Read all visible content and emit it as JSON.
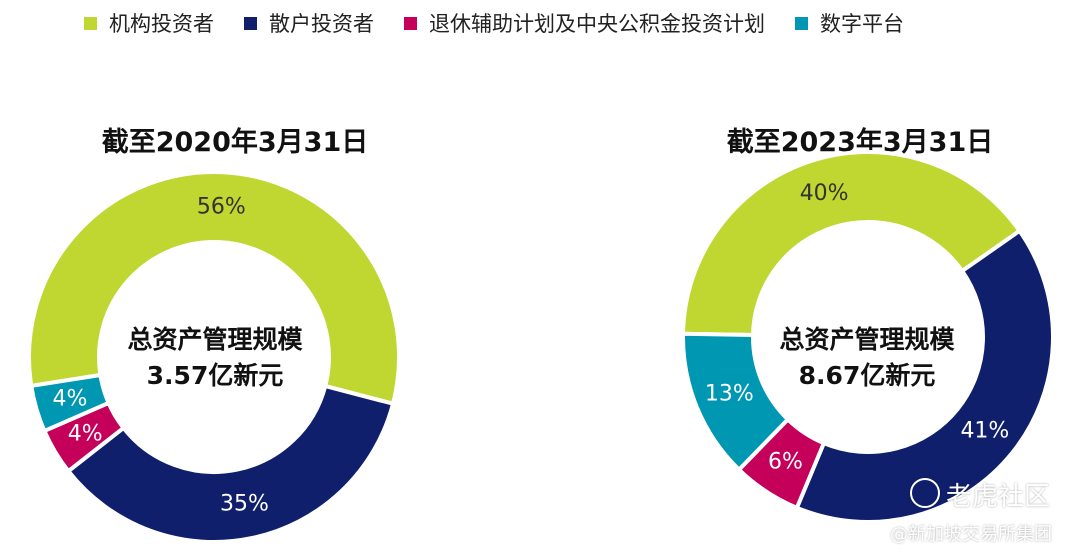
{
  "legend": [
    {
      "label": "机构投资者",
      "color": "#bfd730"
    },
    {
      "label": "散户投资者",
      "color": "#0f1f6b"
    },
    {
      "label": "退休辅助计划及中央公积金投资计划",
      "color": "#c4005a"
    },
    {
      "label": "数字平台",
      "color": "#0097b2"
    }
  ],
  "chart_data": [
    {
      "type": "pie",
      "title": "截至2020年3月31日",
      "center_label_line1": "总资产管理规模",
      "center_label_line2": "3.57亿新元",
      "categories": [
        "机构投资者",
        "散户投资者",
        "退休辅助计划及中央公积金投资计划",
        "数字平台"
      ],
      "values": [
        56,
        35,
        4,
        4
      ],
      "labels": [
        "56%",
        "35%",
        "4%",
        "4%"
      ],
      "colors": [
        "#bfd730",
        "#0f1f6b",
        "#c4005a",
        "#0097b2"
      ]
    },
    {
      "type": "pie",
      "title": "截至2023年3月31日",
      "center_label_line1": "总资产管理规模",
      "center_label_line2": "8.67亿新元",
      "categories": [
        "机构投资者",
        "散户投资者",
        "退休辅助计划及中央公积金投资计划",
        "数字平台"
      ],
      "values": [
        40,
        41,
        6,
        13
      ],
      "labels": [
        "40%",
        "41%",
        "6%",
        "13%"
      ],
      "colors": [
        "#bfd730",
        "#0f1f6b",
        "#c4005a",
        "#0097b2"
      ]
    }
  ],
  "watermark": {
    "main": "老虎社区",
    "sub": "@新加坡交易所集团"
  }
}
